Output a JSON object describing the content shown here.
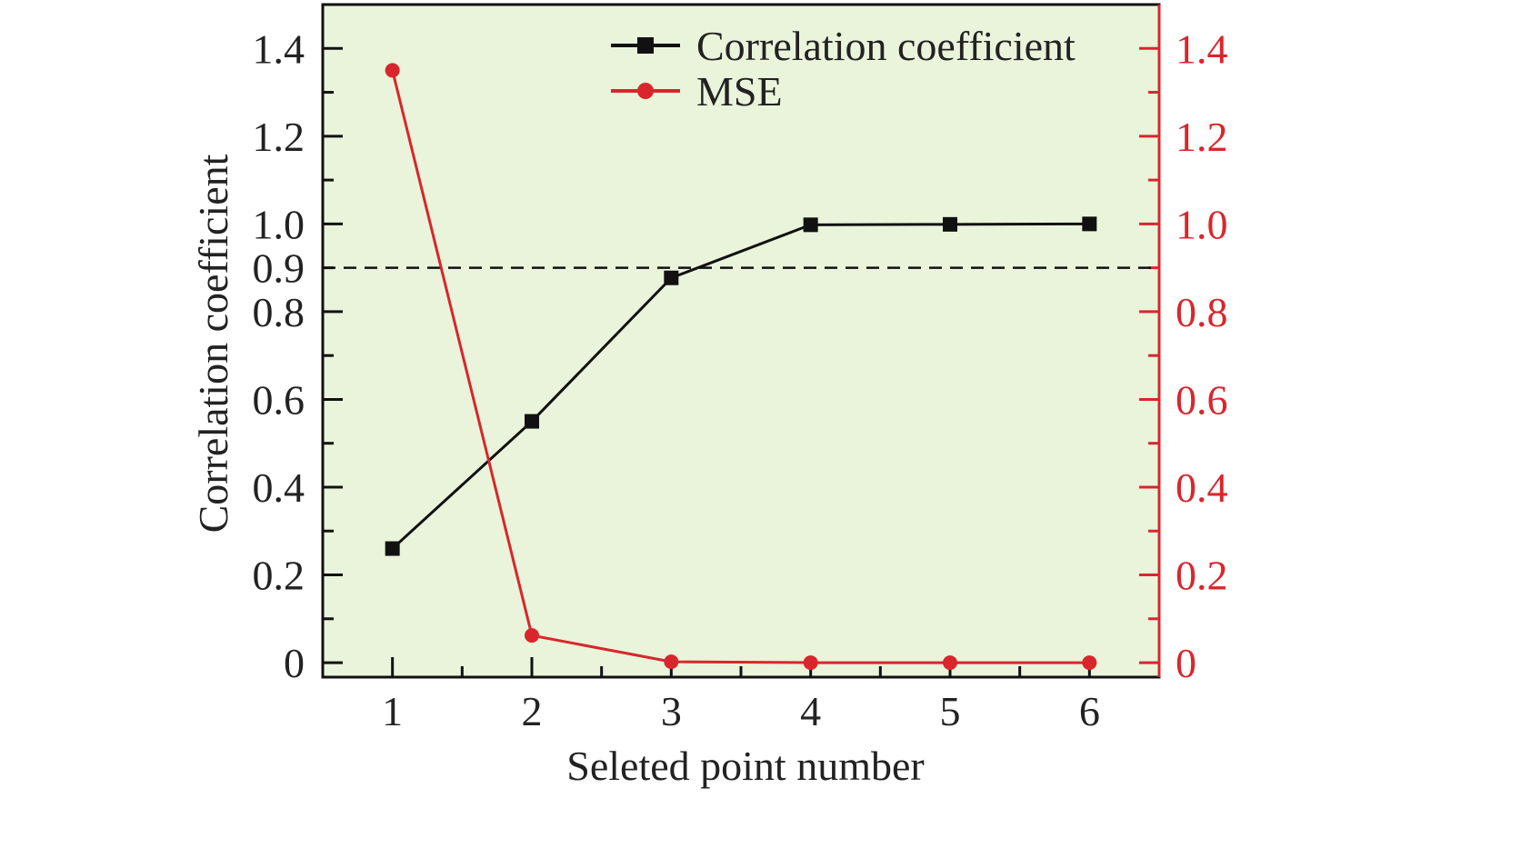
{
  "chart_data": {
    "type": "line",
    "title": "",
    "xlabel": "Seleted point number",
    "ylabel": "Correlation coefficient",
    "y2label": "",
    "x": [
      1,
      2,
      3,
      4,
      5,
      6
    ],
    "xlim": [
      0.5,
      6.5
    ],
    "ylim": [
      -0.033,
      1.5
    ],
    "y2lim": [
      -0.033,
      1.5
    ],
    "x_ticks": [
      "1",
      "2",
      "3",
      "4",
      "5",
      "6"
    ],
    "y_ticks": [
      "0",
      "0.2",
      "0.4",
      "0.6",
      "0.8",
      "0.9",
      "1.0",
      "1.2",
      "1.4"
    ],
    "y2_ticks": [
      "0",
      "0.2",
      "0.4",
      "0.6",
      "0.8",
      "1.0",
      "1.2",
      "1.4"
    ],
    "reference_line": {
      "y": 0.9,
      "style": "dashed"
    },
    "grid": false,
    "legend_position": "top-right",
    "series": [
      {
        "name": "Correlation coefficient",
        "axis": "left",
        "marker": "square",
        "color": "#111111",
        "values": [
          0.26,
          0.55,
          0.877,
          0.998,
          0.999,
          1.0
        ]
      },
      {
        "name": "MSE",
        "axis": "right",
        "marker": "circle",
        "color": "#d9262c",
        "values": [
          1.35,
          0.062,
          0.002,
          0.0,
          0.0,
          0.0
        ]
      }
    ],
    "background_color": "#e9f4db"
  }
}
